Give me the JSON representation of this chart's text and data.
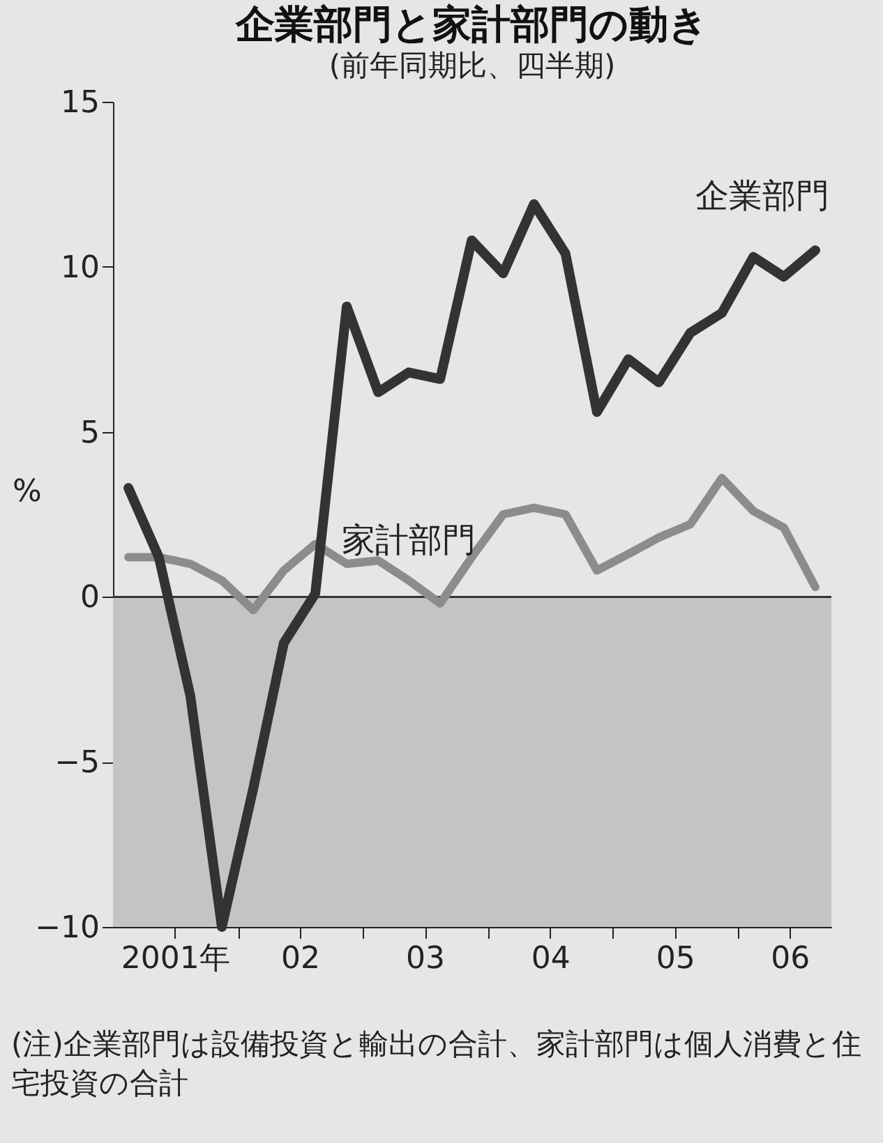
{
  "chart_data": {
    "type": "line",
    "title": "企業部門と家計部門の動き",
    "subtitle": "(前年同期比、四半期)",
    "ylabel": "%",
    "x": [
      "2001-02-15",
      "2001-05-15",
      "2001-08-15",
      "2001-11-15",
      "2002-02-15",
      "2002-05-15",
      "2002-08-15",
      "2002-11-15",
      "2003-02-15",
      "2003-05-15",
      "2003-08-15",
      "2003-11-15",
      "2004-02-15",
      "2004-05-15",
      "2004-08-15",
      "2004-11-15",
      "2005-02-15",
      "2005-05-15",
      "2005-08-15",
      "2005-11-15",
      "2006-02-15",
      "2006-05-15",
      "2006-08-15"
    ],
    "series": [
      {
        "name": "企業部門",
        "color": "#333333",
        "values": [
          3.3,
          1.2,
          -3.0,
          -10,
          -5.8,
          -1.4,
          0.1,
          8.8,
          6.2,
          6.8,
          6.6,
          10.8,
          9.8,
          11.9,
          10.4,
          5.6,
          7.2,
          6.5,
          8.0,
          8.6,
          10.3,
          9.7,
          10.5
        ]
      },
      {
        "name": "家計部門",
        "color": "#8c8c8c",
        "values": [
          1.2,
          1.2,
          1.0,
          0.5,
          -0.4,
          0.8,
          1.6,
          1.0,
          1.1,
          0.5,
          -0.2,
          1.2,
          2.5,
          2.7,
          2.5,
          0.8,
          1.3,
          1.8,
          2.2,
          3.6,
          2.6,
          2.1,
          0.3
        ]
      }
    ],
    "xlim": [
      "2001-01-01",
      "2006-10-01"
    ],
    "xticks": [
      {
        "value": "2001-07-01",
        "label": "2001年"
      },
      {
        "value": "2002-01-01",
        "label": null
      },
      {
        "value": "2002-07-01",
        "label": "02"
      },
      {
        "value": "2003-01-01",
        "label": null
      },
      {
        "value": "2003-07-01",
        "label": "03"
      },
      {
        "value": "2004-01-01",
        "label": null
      },
      {
        "value": "2004-07-01",
        "label": "04"
      },
      {
        "value": "2005-01-01",
        "label": null
      },
      {
        "value": "2005-07-01",
        "label": "05"
      },
      {
        "value": "2006-01-01",
        "label": null
      },
      {
        "value": "2006-06-01",
        "label": "06"
      }
    ],
    "ylim": [
      -10,
      15
    ],
    "yticks": [
      -10,
      -5,
      0,
      5,
      10,
      15
    ],
    "ref_lines": [
      {
        "axis": "y",
        "value": 0,
        "color": "#333333"
      }
    ],
    "bands": [
      {
        "axis": "y",
        "from": -10,
        "to": 0,
        "color": "#c4c4c4"
      }
    ],
    "annotations": [
      "(注)企業部門は設備投資と輸出の合計、家計部門は個人消費と住宅投資の合計"
    ]
  }
}
